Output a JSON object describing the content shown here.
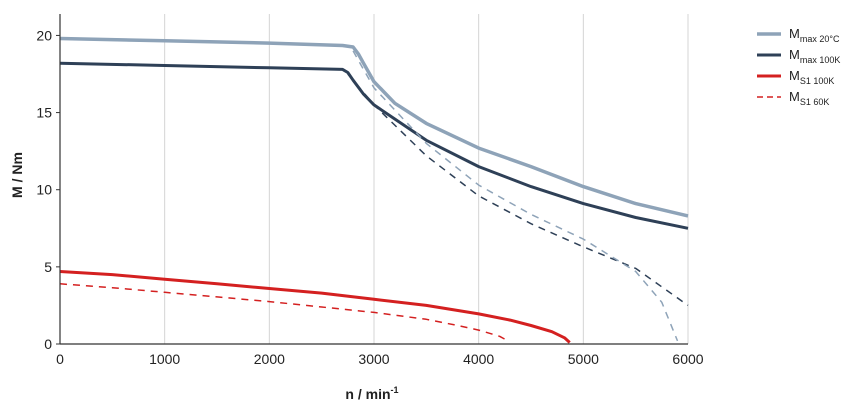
{
  "chart_data": {
    "type": "line",
    "xlabel_main": "n / min",
    "xlabel_sup": "-1",
    "ylabel": "M / Nm",
    "xlim": [
      0,
      6000
    ],
    "ylim": [
      0,
      21
    ],
    "x_ticks": [
      "0",
      "1000",
      "2000",
      "3000",
      "4000",
      "5000",
      "6000"
    ],
    "y_ticks": [
      "0",
      "5",
      "10",
      "15",
      "20"
    ],
    "grid": "vertical",
    "legend_position": "top-right",
    "series": [
      {
        "name_main": "M",
        "name_sub": "max 20°C",
        "color": "#8ea3b8",
        "width": 3.5,
        "dash": "",
        "points": [
          [
            0,
            19.8
          ],
          [
            1000,
            19.65
          ],
          [
            2000,
            19.5
          ],
          [
            2700,
            19.35
          ],
          [
            2800,
            19.25
          ],
          [
            2850,
            18.8
          ],
          [
            2900,
            18.2
          ],
          [
            3000,
            17.0
          ],
          [
            3200,
            15.6
          ],
          [
            3500,
            14.3
          ],
          [
            4000,
            12.7
          ],
          [
            4500,
            11.5
          ],
          [
            5000,
            10.2
          ],
          [
            5500,
            9.1
          ],
          [
            6000,
            8.3
          ]
        ]
      },
      {
        "name_main": "M",
        "name_sub": "max 100K",
        "color": "#2e4057",
        "width": 3,
        "dash": "",
        "points": [
          [
            0,
            18.2
          ],
          [
            1000,
            18.05
          ],
          [
            2000,
            17.9
          ],
          [
            2700,
            17.8
          ],
          [
            2750,
            17.6
          ],
          [
            2800,
            17.1
          ],
          [
            2900,
            16.2
          ],
          [
            3000,
            15.5
          ],
          [
            3500,
            13.2
          ],
          [
            4000,
            11.5
          ],
          [
            4500,
            10.2
          ],
          [
            5000,
            9.1
          ],
          [
            5500,
            8.2
          ],
          [
            6000,
            7.5
          ]
        ]
      },
      {
        "name_main": "M",
        "name_sub": "S1 100K",
        "color": "#d42020",
        "width": 3,
        "dash": "",
        "points": [
          [
            0,
            4.7
          ],
          [
            500,
            4.5
          ],
          [
            1000,
            4.2
          ],
          [
            1500,
            3.9
          ],
          [
            2000,
            3.6
          ],
          [
            2500,
            3.3
          ],
          [
            3000,
            2.9
          ],
          [
            3500,
            2.5
          ],
          [
            4000,
            1.95
          ],
          [
            4300,
            1.55
          ],
          [
            4500,
            1.2
          ],
          [
            4700,
            0.8
          ],
          [
            4820,
            0.4
          ],
          [
            4870,
            0.1
          ]
        ]
      },
      {
        "name_main": "M",
        "name_sub": "S1 60K",
        "color": "#d42020",
        "width": 1.5,
        "dash": "7,6",
        "points": [
          [
            0,
            3.9
          ],
          [
            500,
            3.65
          ],
          [
            1000,
            3.35
          ],
          [
            1500,
            3.05
          ],
          [
            2000,
            2.75
          ],
          [
            2500,
            2.4
          ],
          [
            3000,
            2.05
          ],
          [
            3500,
            1.6
          ],
          [
            3800,
            1.2
          ],
          [
            4000,
            0.9
          ],
          [
            4200,
            0.5
          ],
          [
            4280,
            0.2
          ]
        ]
      },
      {
        "name_main": "",
        "name_sub": "",
        "color": "#2e4057",
        "width": 1.5,
        "dash": "7,6",
        "points": [
          [
            2750,
            17.5
          ],
          [
            2850,
            16.7
          ],
          [
            3000,
            15.5
          ],
          [
            3500,
            12.2
          ],
          [
            4000,
            9.6
          ],
          [
            4500,
            7.8
          ],
          [
            5000,
            6.3
          ],
          [
            5500,
            4.9
          ],
          [
            6000,
            2.5
          ]
        ]
      },
      {
        "name_main": "",
        "name_sub": "",
        "color": "#8ea3b8",
        "width": 1.5,
        "dash": "7,6",
        "points": [
          [
            2800,
            19.0
          ],
          [
            2900,
            17.8
          ],
          [
            3000,
            16.6
          ],
          [
            3500,
            13.0
          ],
          [
            4000,
            10.3
          ],
          [
            4500,
            8.4
          ],
          [
            5000,
            6.8
          ],
          [
            5500,
            4.7
          ],
          [
            5750,
            2.7
          ],
          [
            5900,
            0.2
          ]
        ]
      }
    ]
  }
}
